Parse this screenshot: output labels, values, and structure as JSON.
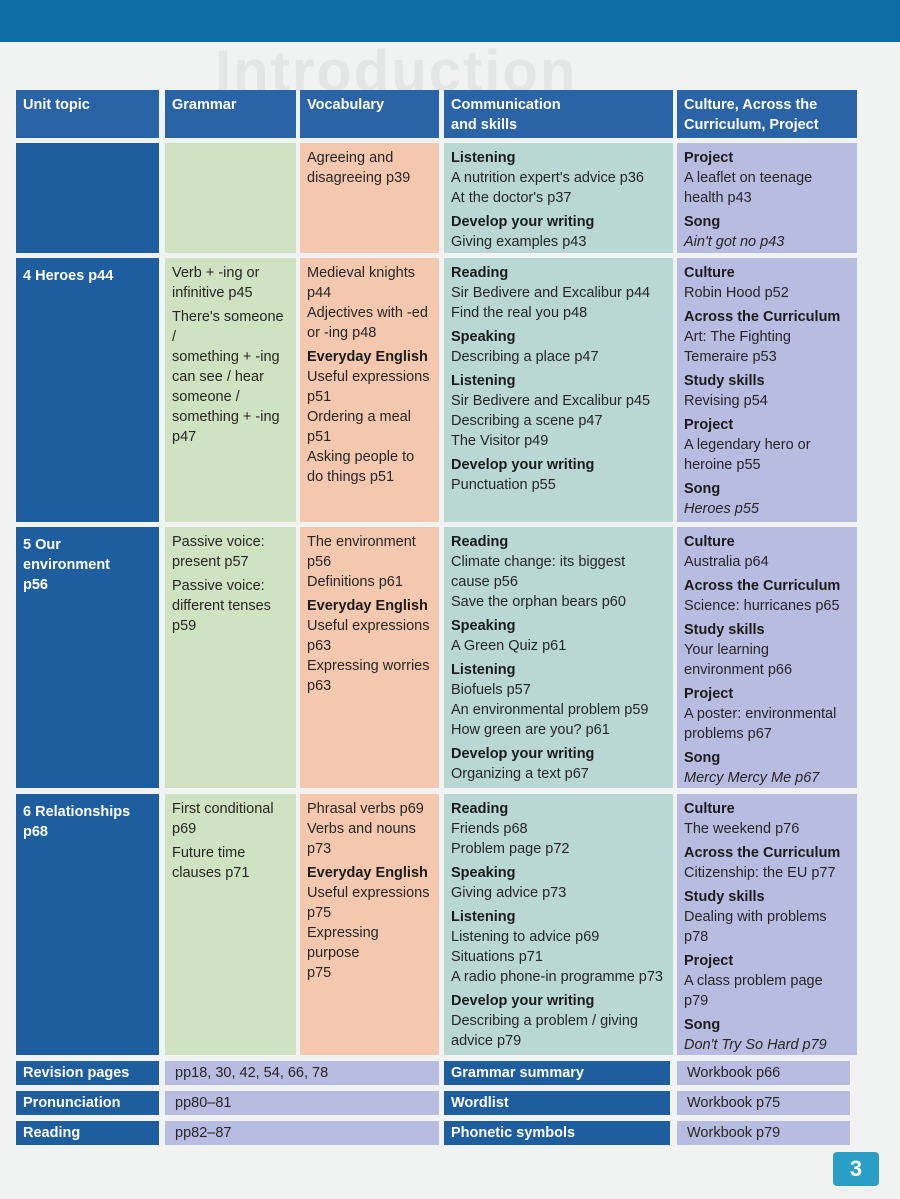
{
  "watermark": "Introduction",
  "headers": {
    "unit": "Unit topic",
    "grammar": "Grammar",
    "vocabulary": "Vocabulary",
    "communication": [
      "Communication",
      "and skills"
    ],
    "culture": [
      "Culture, Across the",
      "Curriculum, Project"
    ]
  },
  "rows": [
    {
      "unit": [],
      "grammar": [],
      "vocabulary": [
        {
          "lines": [
            "Agreeing and",
            "disagreeing p39"
          ]
        }
      ],
      "communication": [
        {
          "heading": "Listening",
          "lines": [
            "A nutrition expert's advice p36",
            "At the doctor's p37"
          ]
        },
        {
          "heading": "Develop your writing",
          "lines": [
            "Giving examples p43"
          ]
        }
      ],
      "culture": [
        {
          "heading": "Project",
          "lines": [
            "A leaflet on teenage",
            "health p43"
          ]
        },
        {
          "heading": "Song",
          "lines": [
            "Ain't got no p43"
          ]
        }
      ]
    },
    {
      "unit": [
        "4   Heroes p44"
      ],
      "grammar": [
        {
          "lines": [
            "Verb + -ing or",
            "infinitive p45"
          ]
        },
        {
          "lines": [
            "There's someone /",
            "something + -ing",
            "can see / hear",
            "someone /",
            "something + -ing",
            "p47"
          ]
        }
      ],
      "vocabulary": [
        {
          "lines": [
            "Medieval knights",
            "p44",
            "Adjectives with -ed",
            "or -ing p48"
          ]
        },
        {
          "heading": "Everyday English",
          "lines": [
            "Useful expressions",
            "p51",
            "Ordering a meal",
            "p51",
            "Asking people to",
            "do things p51"
          ]
        }
      ],
      "communication": [
        {
          "heading": "Reading",
          "lines": [
            "Sir Bedivere and Excalibur p44",
            "Find the real you p48"
          ]
        },
        {
          "heading": "Speaking",
          "lines": [
            "Describing a place p47"
          ]
        },
        {
          "heading": "Listening",
          "lines": [
            "Sir Bedivere and Excalibur p45",
            "Describing a scene p47",
            "The Visitor p49"
          ]
        },
        {
          "heading": "Develop your writing",
          "lines": [
            "Punctuation p55"
          ]
        }
      ],
      "culture": [
        {
          "heading": "Culture",
          "lines": [
            "Robin Hood p52"
          ]
        },
        {
          "heading": "Across the Curriculum",
          "lines": [
            "Art: The Fighting",
            "Temeraire p53"
          ]
        },
        {
          "heading": "Study skills",
          "lines": [
            "Revising p54"
          ]
        },
        {
          "heading": "Project",
          "lines": [
            "A legendary hero or",
            "heroine p55"
          ]
        },
        {
          "heading": "Song",
          "lines": [
            "Heroes p55"
          ]
        }
      ]
    },
    {
      "unit": [
        "5   Our",
        "environment",
        "p56"
      ],
      "grammar": [
        {
          "lines": [
            "Passive voice:",
            "present p57"
          ]
        },
        {
          "lines": [
            "Passive voice:",
            "different tenses",
            "p59"
          ]
        }
      ],
      "vocabulary": [
        {
          "lines": [
            "The environment",
            "p56",
            "Definitions p61"
          ]
        },
        {
          "heading": "Everyday English",
          "lines": [
            "Useful expressions",
            "p63",
            "Expressing worries",
            "p63"
          ]
        }
      ],
      "communication": [
        {
          "heading": "Reading",
          "lines": [
            "Climate change: its biggest",
            "cause p56",
            "Save the orphan bears p60"
          ]
        },
        {
          "heading": "Speaking",
          "lines": [
            "A Green Quiz p61"
          ]
        },
        {
          "heading": "Listening",
          "lines": [
            "Biofuels p57",
            "An environmental problem p59",
            "How green are you? p61"
          ]
        },
        {
          "heading": "Develop your writing",
          "lines": [
            "Organizing a text p67"
          ]
        }
      ],
      "culture": [
        {
          "heading": "Culture",
          "lines": [
            "Australia p64"
          ]
        },
        {
          "heading": "Across the Curriculum",
          "lines": [
            "Science: hurricanes p65"
          ]
        },
        {
          "heading": "Study skills",
          "lines": [
            "Your learning",
            "environment p66"
          ]
        },
        {
          "heading": "Project",
          "lines": [
            "A poster: environmental",
            "problems p67"
          ]
        },
        {
          "heading": "Song",
          "lines": [
            "Mercy Mercy Me p67"
          ]
        }
      ]
    },
    {
      "unit": [
        "6   Relationships",
        "p68"
      ],
      "grammar": [
        {
          "lines": [
            "First conditional",
            "p69"
          ]
        },
        {
          "lines": [
            "Future time",
            "clauses p71"
          ]
        }
      ],
      "vocabulary": [
        {
          "lines": [
            "Phrasal verbs p69",
            "Verbs and nouns",
            "p73"
          ]
        },
        {
          "heading": "Everyday English",
          "lines": [
            "Useful expressions",
            "p75",
            "Expressing purpose",
            "p75"
          ]
        }
      ],
      "communication": [
        {
          "heading": "Reading",
          "lines": [
            "Friends p68",
            "Problem page p72"
          ]
        },
        {
          "heading": "Speaking",
          "lines": [
            "Giving advice p73"
          ]
        },
        {
          "heading": "Listening",
          "lines": [
            "Listening to advice p69",
            "Situations p71",
            "A radio phone-in programme p73"
          ]
        },
        {
          "heading": "Develop your writing",
          "lines": [
            "Describing a problem / giving",
            "advice p79"
          ]
        }
      ],
      "culture": [
        {
          "heading": "Culture",
          "lines": [
            "The weekend p76"
          ]
        },
        {
          "heading": "Across the Curriculum",
          "lines": [
            "Citizenship: the EU p77"
          ]
        },
        {
          "heading": "Study skills",
          "lines": [
            "Dealing with problems",
            "p78"
          ]
        },
        {
          "heading": "Project",
          "lines": [
            "A class problem page",
            "p79"
          ]
        },
        {
          "heading": "Song",
          "lines": [
            "Don't Try So Hard p79"
          ]
        }
      ]
    }
  ],
  "bottom": [
    {
      "label": "Revision pages",
      "value": "pp18, 30, 42, 54, 66, 78",
      "label2": "Grammar summary",
      "value2": "Workbook p66"
    },
    {
      "label": "Pronunciation",
      "value": "pp80–81",
      "label2": "Wordlist",
      "value2": "Workbook p75"
    },
    {
      "label": "Reading",
      "value": "pp82–87",
      "label2": "Phonetic symbols",
      "value2": "Workbook p79"
    }
  ],
  "page_number": "3",
  "colors": {
    "header": "#2a63a6",
    "unit": "#1f5e9e",
    "grammar": "#cfe2c2",
    "vocabulary": "#f3c8ae",
    "communication": "#b9d8d4",
    "culture": "#b8bce0",
    "topbar": "#0d6ea6",
    "page_tab": "#2a9ec5"
  }
}
